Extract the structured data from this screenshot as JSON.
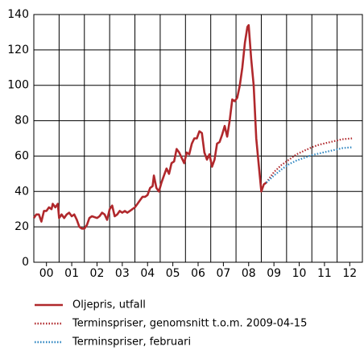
{
  "chart_data": {
    "type": "line",
    "xlim": [
      2000,
      2013
    ],
    "ylim": [
      0,
      140
    ],
    "xticks": [
      {
        "value": 2000.5,
        "label": "00"
      },
      {
        "value": 2001.5,
        "label": "01"
      },
      {
        "value": 2002.5,
        "label": "02"
      },
      {
        "value": 2003.5,
        "label": "03"
      },
      {
        "value": 2004.5,
        "label": "04"
      },
      {
        "value": 2005.5,
        "label": "05"
      },
      {
        "value": 2006.5,
        "label": "06"
      },
      {
        "value": 2007.5,
        "label": "07"
      },
      {
        "value": 2008.5,
        "label": "08"
      },
      {
        "value": 2009.5,
        "label": "09"
      },
      {
        "value": 2010.5,
        "label": "10"
      },
      {
        "value": 2011.5,
        "label": "11"
      },
      {
        "value": 2012.5,
        "label": "12"
      }
    ],
    "yticks": [
      0,
      20,
      40,
      60,
      80,
      100,
      120,
      140
    ],
    "grid": true,
    "series": [
      {
        "name": "Oljepris, utfall",
        "color": "#b0282c",
        "style": "solid",
        "x": [
          2000.0,
          2000.1,
          2000.2,
          2000.3,
          2000.4,
          2000.5,
          2000.6,
          2000.7,
          2000.75,
          2000.85,
          2000.95,
          2001.0,
          2001.1,
          2001.2,
          2001.3,
          2001.4,
          2001.5,
          2001.6,
          2001.7,
          2001.8,
          2001.9,
          2002.0,
          2002.1,
          2002.2,
          2002.3,
          2002.5,
          2002.6,
          2002.7,
          2002.8,
          2002.9,
          2003.0,
          2003.1,
          2003.2,
          2003.3,
          2003.4,
          2003.5,
          2003.6,
          2003.7,
          2003.8,
          2003.9,
          2004.0,
          2004.1,
          2004.2,
          2004.3,
          2004.4,
          2004.5,
          2004.6,
          2004.7,
          2004.75,
          2004.85,
          2004.95,
          2005.05,
          2005.15,
          2005.25,
          2005.35,
          2005.45,
          2005.55,
          2005.65,
          2005.75,
          2005.85,
          2005.95,
          2006.05,
          2006.15,
          2006.25,
          2006.35,
          2006.45,
          2006.55,
          2006.65,
          2006.75,
          2006.85,
          2006.95,
          2007.05,
          2007.15,
          2007.25,
          2007.35,
          2007.45,
          2007.55,
          2007.65,
          2007.75,
          2007.85,
          2007.95,
          2008.05,
          2008.15,
          2008.25,
          2008.35,
          2008.45,
          2008.5,
          2008.6,
          2008.7,
          2008.8,
          2008.9,
          2009.0,
          2009.1,
          2009.2
        ],
        "values": [
          25,
          27,
          27,
          23,
          29,
          29,
          31,
          30,
          33,
          31,
          33,
          25,
          27,
          25,
          27,
          28,
          26,
          27,
          24,
          20,
          19,
          19,
          21,
          25,
          26,
          25,
          26,
          28,
          27,
          24,
          30,
          32,
          26,
          27,
          29,
          28,
          29,
          28,
          29,
          30,
          31,
          33,
          35,
          37,
          37,
          38,
          42,
          43,
          49,
          42,
          40,
          45,
          49,
          53,
          50,
          56,
          57,
          64,
          62,
          59,
          56,
          62,
          61,
          67,
          70,
          70,
          74,
          73,
          62,
          58,
          61,
          54,
          58,
          67,
          68,
          72,
          77,
          71,
          80,
          92,
          91,
          93,
          100,
          110,
          124,
          133,
          134,
          115,
          100,
          70,
          55,
          40,
          44,
          45
        ]
      },
      {
        "name": "Terminspriser, genomsnitt t.o.m. 2009-04-15",
        "color": "#b0282c",
        "style": "dotted",
        "x": [
          2009.2,
          2009.5,
          2009.8,
          2010.1,
          2010.4,
          2010.7,
          2011.0,
          2011.3,
          2011.6,
          2011.9,
          2012.2,
          2012.6
        ],
        "values": [
          45,
          51,
          55,
          58,
          61,
          63,
          65,
          66.5,
          67.5,
          68.5,
          69.5,
          70
        ]
      },
      {
        "name": "Terminspriser, februari",
        "color": "#2e86c1",
        "style": "dotted",
        "x": [
          2009.2,
          2009.5,
          2009.8,
          2010.1,
          2010.4,
          2010.7,
          2011.0,
          2011.3,
          2011.6,
          2011.9,
          2012.2,
          2012.6
        ],
        "values": [
          45,
          49,
          52.5,
          55.5,
          57.5,
          59,
          60.5,
          61.5,
          62.5,
          63.5,
          64.5,
          65
        ]
      }
    ]
  }
}
